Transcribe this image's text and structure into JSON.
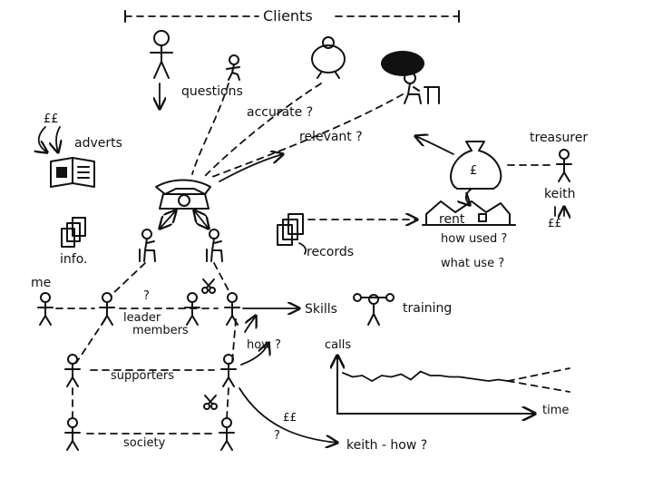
{
  "title": "Clients",
  "labels": {
    "questions": "questions",
    "accurate": "accurate ?",
    "relevant": "relevant ?",
    "adverts": "adverts",
    "pounds_adverts": "££",
    "treasurer": "treasurer",
    "keith": "keith",
    "pounds_keith": "££",
    "rent": "rent",
    "how_used": "how used ?",
    "what_use": "what use ?",
    "info": "info.",
    "records": "records",
    "me": "me",
    "question_mark": "?",
    "leader": "leader",
    "members": "members",
    "skills": "Skills",
    "training": "training",
    "how": "how ?",
    "supporters": "supporters",
    "society": "society",
    "pounds_bottom": "££",
    "question_bottom": "?",
    "keith_how": "keith - how ?"
  },
  "chart_data": {
    "type": "line",
    "title": "",
    "ylabel": "calls",
    "xlabel": "time",
    "series": [
      {
        "values": [
          30,
          27,
          28,
          24,
          28,
          27,
          29,
          25,
          31,
          28,
          28,
          27,
          27,
          26,
          25,
          24,
          25,
          24
        ]
      }
    ],
    "projection": [
      "up",
      "down"
    ]
  },
  "icons": [
    "stick-figure-icon",
    "telephone-icon",
    "money-bag-icon",
    "house-icon",
    "scissors-icon",
    "newspaper-icon",
    "document-stack-icon"
  ]
}
